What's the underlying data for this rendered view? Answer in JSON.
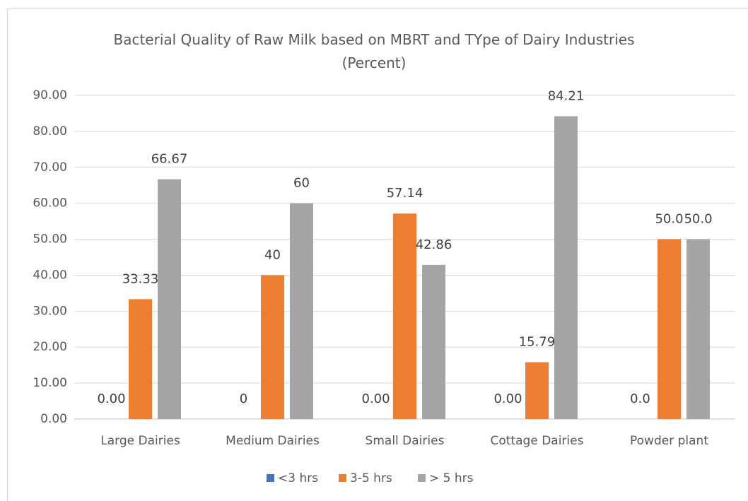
{
  "chart_data": {
    "type": "bar",
    "title": "Bacterial Quality of Raw Milk based on MBRT and TYpe of Dairy Industries (Percent)",
    "categories": [
      "Large Dairies",
      "Medium Dairies",
      "Small Dairies",
      "Cottage Dairies",
      "Powder plant"
    ],
    "series": [
      {
        "name": "<3 hrs",
        "color": "#4472c4",
        "values": [
          0,
          0,
          0,
          0,
          0
        ],
        "value_labels": [
          "0.00",
          "0",
          "0.00",
          "0.00",
          "0.0"
        ]
      },
      {
        "name": "3-5 hrs",
        "color": "#ed7d31",
        "values": [
          33.33,
          40,
          57.14,
          15.79,
          50
        ],
        "value_labels": [
          "33.33",
          "40",
          "57.14",
          "15.79",
          "50.0"
        ]
      },
      {
        "name": "> 5 hrs",
        "color": "#a5a5a5",
        "values": [
          66.67,
          60,
          42.86,
          84.21,
          50
        ],
        "value_labels": [
          "66.67",
          "60",
          "42.86",
          "84.21",
          "50.0"
        ]
      }
    ],
    "ylim": [
      0,
      90
    ],
    "yticks": [
      {
        "value": 0,
        "label": "0.00"
      },
      {
        "value": 10,
        "label": "10.00"
      },
      {
        "value": 20,
        "label": "20.00"
      },
      {
        "value": 30,
        "label": "30.00"
      },
      {
        "value": 40,
        "label": "40.00"
      },
      {
        "value": 50,
        "label": "50.00"
      },
      {
        "value": 60,
        "label": "60.00"
      },
      {
        "value": 70,
        "label": "70.00"
      },
      {
        "value": 80,
        "label": "80.00"
      },
      {
        "value": 90,
        "label": "90.00"
      }
    ],
    "grid": true,
    "legend": "bottom"
  }
}
